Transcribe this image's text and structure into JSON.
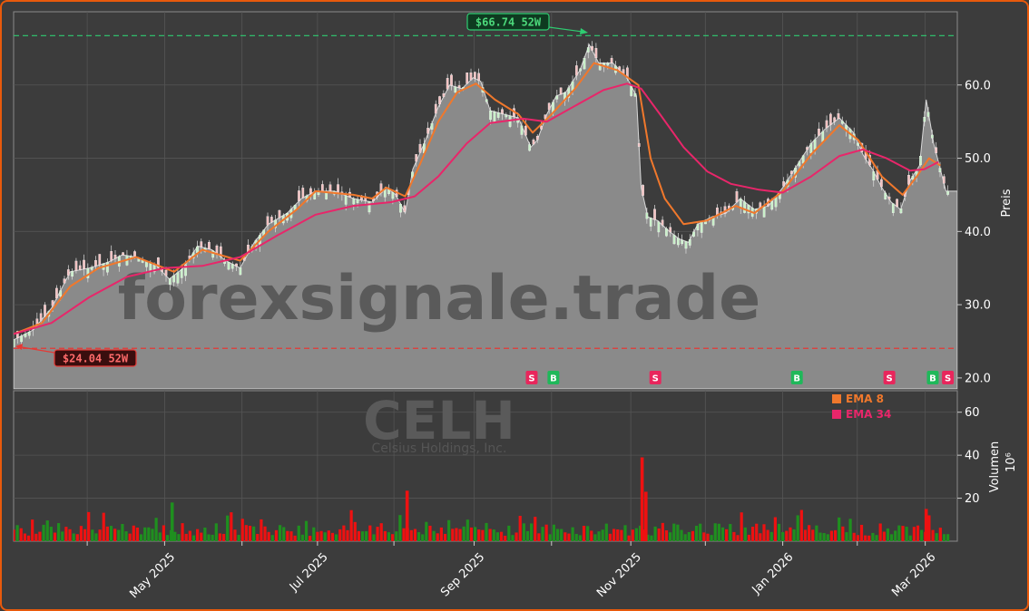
{
  "chart_data": [
    {
      "type": "line",
      "symbol": "CELH",
      "company": "Celsius Holdings, Inc.",
      "watermark": "forexsignale.trade",
      "ylabel": "Preis",
      "ylim": [
        18.5,
        70
      ],
      "yticks": [
        20,
        30,
        40,
        50,
        60
      ],
      "ytick_labels": [
        "20.0",
        "30.0",
        "40.0",
        "50.0",
        "60.0"
      ],
      "xlim": [
        0,
        1
      ],
      "x_ticks": [
        {
          "pos": 0.078,
          "label": ""
        },
        {
          "pos": 0.16,
          "label": "May 2025"
        },
        {
          "pos": 0.242,
          "label": ""
        },
        {
          "pos": 0.322,
          "label": "Jul 2025"
        },
        {
          "pos": 0.403,
          "label": ""
        },
        {
          "pos": 0.488,
          "label": "Sep 2025"
        },
        {
          "pos": 0.57,
          "label": ""
        },
        {
          "pos": 0.654,
          "label": "Nov 2025"
        },
        {
          "pos": 0.733,
          "label": ""
        },
        {
          "pos": 0.815,
          "label": "Jan 2026"
        },
        {
          "pos": 0.894,
          "label": ""
        },
        {
          "pos": 0.966,
          "label": "Mar 2026"
        }
      ],
      "close_points": [
        [
          0.0,
          25.2
        ],
        [
          0.02,
          26.5
        ],
        [
          0.04,
          29.5
        ],
        [
          0.06,
          34.5
        ],
        [
          0.08,
          35.0
        ],
        [
          0.1,
          35.8
        ],
        [
          0.115,
          36.8
        ],
        [
          0.13,
          36.5
        ],
        [
          0.15,
          35.5
        ],
        [
          0.165,
          33.5
        ],
        [
          0.18,
          35.0
        ],
        [
          0.195,
          38.0
        ],
        [
          0.21,
          37.5
        ],
        [
          0.225,
          36.0
        ],
        [
          0.24,
          35.0
        ],
        [
          0.255,
          38.5
        ],
        [
          0.27,
          41.0
        ],
        [
          0.29,
          42.5
        ],
        [
          0.305,
          44.5
        ],
        [
          0.32,
          45.5
        ],
        [
          0.34,
          45.5
        ],
        [
          0.36,
          44.5
        ],
        [
          0.38,
          44.0
        ],
        [
          0.395,
          46.0
        ],
        [
          0.405,
          45.0
        ],
        [
          0.415,
          42.5
        ],
        [
          0.423,
          48.5
        ],
        [
          0.435,
          52.0
        ],
        [
          0.45,
          57.0
        ],
        [
          0.462,
          60.0
        ],
        [
          0.475,
          59.5
        ],
        [
          0.487,
          61.0
        ],
        [
          0.495,
          60.5
        ],
        [
          0.505,
          56.5
        ],
        [
          0.52,
          56.0
        ],
        [
          0.535,
          55.5
        ],
        [
          0.548,
          51.5
        ],
        [
          0.555,
          52.5
        ],
        [
          0.565,
          56.0
        ],
        [
          0.575,
          58.5
        ],
        [
          0.585,
          59.0
        ],
        [
          0.6,
          62.0
        ],
        [
          0.61,
          65.5
        ],
        [
          0.62,
          63.0
        ],
        [
          0.635,
          63.0
        ],
        [
          0.65,
          61.0
        ],
        [
          0.66,
          58.5
        ],
        [
          0.665,
          46.0
        ],
        [
          0.672,
          42.0
        ],
        [
          0.682,
          41.5
        ],
        [
          0.695,
          40.0
        ],
        [
          0.705,
          39.0
        ],
        [
          0.715,
          38.5
        ],
        [
          0.725,
          41.0
        ],
        [
          0.74,
          42.0
        ],
        [
          0.755,
          42.5
        ],
        [
          0.77,
          44.5
        ],
        [
          0.785,
          43.0
        ],
        [
          0.8,
          43.5
        ],
        [
          0.815,
          46.0
        ],
        [
          0.83,
          49.0
        ],
        [
          0.845,
          52.0
        ],
        [
          0.86,
          54.0
        ],
        [
          0.875,
          55.5
        ],
        [
          0.89,
          53.5
        ],
        [
          0.9,
          50.5
        ],
        [
          0.91,
          48.5
        ],
        [
          0.92,
          46.0
        ],
        [
          0.93,
          44.0
        ],
        [
          0.94,
          43.0
        ],
        [
          0.95,
          47.0
        ],
        [
          0.96,
          49.0
        ],
        [
          0.967,
          58.0
        ],
        [
          0.975,
          52.0
        ],
        [
          0.983,
          48.0
        ],
        [
          0.988,
          45.5
        ],
        [
          1.0,
          45.5
        ]
      ],
      "series": [
        {
          "name": "EMA 8",
          "color": "#f0782c",
          "values": [
            [
              0.0,
              26.0
            ],
            [
              0.03,
              27.5
            ],
            [
              0.06,
              32.5
            ],
            [
              0.09,
              35.0
            ],
            [
              0.13,
              36.5
            ],
            [
              0.17,
              34.5
            ],
            [
              0.2,
              37.5
            ],
            [
              0.24,
              36.0
            ],
            [
              0.27,
              40.0
            ],
            [
              0.3,
              43.0
            ],
            [
              0.32,
              45.5
            ],
            [
              0.36,
              45.0
            ],
            [
              0.38,
              44.5
            ],
            [
              0.395,
              46.0
            ],
            [
              0.415,
              44.8
            ],
            [
              0.43,
              49.0
            ],
            [
              0.45,
              55.0
            ],
            [
              0.47,
              59.0
            ],
            [
              0.49,
              60.2
            ],
            [
              0.51,
              58.0
            ],
            [
              0.535,
              56.0
            ],
            [
              0.55,
              53.5
            ],
            [
              0.57,
              56.0
            ],
            [
              0.595,
              59.5
            ],
            [
              0.615,
              63.0
            ],
            [
              0.64,
              62.0
            ],
            [
              0.662,
              60.0
            ],
            [
              0.675,
              50.0
            ],
            [
              0.69,
              44.5
            ],
            [
              0.71,
              41.0
            ],
            [
              0.735,
              41.5
            ],
            [
              0.765,
              43.5
            ],
            [
              0.785,
              42.5
            ],
            [
              0.815,
              45.5
            ],
            [
              0.845,
              50.5
            ],
            [
              0.875,
              54.5
            ],
            [
              0.895,
              52.5
            ],
            [
              0.92,
              47.5
            ],
            [
              0.942,
              45.0
            ],
            [
              0.957,
              47.5
            ],
            [
              0.97,
              50.0
            ],
            [
              0.982,
              49.0
            ]
          ]
        },
        {
          "name": "EMA 34",
          "color": "#e8266a",
          "values": [
            [
              0.0,
              26.0
            ],
            [
              0.04,
              27.5
            ],
            [
              0.08,
              31.0
            ],
            [
              0.12,
              33.8
            ],
            [
              0.16,
              35.0
            ],
            [
              0.2,
              35.3
            ],
            [
              0.24,
              36.5
            ],
            [
              0.28,
              39.5
            ],
            [
              0.32,
              42.3
            ],
            [
              0.36,
              43.5
            ],
            [
              0.4,
              44.0
            ],
            [
              0.425,
              44.8
            ],
            [
              0.45,
              47.5
            ],
            [
              0.48,
              52.0
            ],
            [
              0.505,
              54.8
            ],
            [
              0.54,
              55.4
            ],
            [
              0.565,
              55.0
            ],
            [
              0.59,
              56.8
            ],
            [
              0.625,
              59.3
            ],
            [
              0.65,
              60.2
            ],
            [
              0.665,
              59.5
            ],
            [
              0.685,
              56.0
            ],
            [
              0.71,
              51.5
            ],
            [
              0.735,
              48.2
            ],
            [
              0.76,
              46.5
            ],
            [
              0.79,
              45.7
            ],
            [
              0.815,
              45.3
            ],
            [
              0.845,
              47.5
            ],
            [
              0.875,
              50.3
            ],
            [
              0.9,
              51.2
            ],
            [
              0.925,
              50.0
            ],
            [
              0.95,
              48.3
            ],
            [
              0.965,
              48.5
            ],
            [
              0.98,
              49.5
            ]
          ]
        }
      ],
      "high_52w": {
        "value": 66.74,
        "label": "$66.74 52W",
        "color": "#2ecc71"
      },
      "low_52w": {
        "value": 24.04,
        "label": "$24.04 52W",
        "color": "#e53935"
      },
      "signals": [
        {
          "x": 0.549,
          "label": "S",
          "color": "#e8265c"
        },
        {
          "x": 0.572,
          "label": "B",
          "color": "#1fb85a"
        },
        {
          "x": 0.68,
          "label": "S",
          "color": "#e8265c"
        },
        {
          "x": 0.83,
          "label": "B",
          "color": "#1fb85a"
        },
        {
          "x": 0.928,
          "label": "S",
          "color": "#e8265c"
        },
        {
          "x": 0.974,
          "label": "B",
          "color": "#1fb85a"
        },
        {
          "x": 0.99,
          "label": "S",
          "color": "#e8265c"
        }
      ],
      "legend": [
        {
          "label": "EMA 8",
          "color": "#f0782c"
        },
        {
          "label": "EMA 34",
          "color": "#e8266a"
        }
      ],
      "legend_position": "top-right",
      "grid": true
    },
    {
      "type": "bar",
      "ylabel": "Volumen",
      "yunit": "10⁶",
      "ylim": [
        0,
        70
      ],
      "yticks": [
        20,
        40,
        60
      ],
      "ytick_labels": [
        "20",
        "40",
        "60"
      ],
      "up_color": "#1f8f1f",
      "down_color": "#ee1111",
      "spikes": [
        {
          "x": 0.168,
          "value": 18,
          "up": true
        },
        {
          "x": 0.417,
          "value": 23.5,
          "up": false
        },
        {
          "x": 0.666,
          "value": 39,
          "up": false
        },
        {
          "x": 0.67,
          "value": 23,
          "up": false
        },
        {
          "x": 0.967,
          "value": 15,
          "up": false
        }
      ]
    }
  ]
}
